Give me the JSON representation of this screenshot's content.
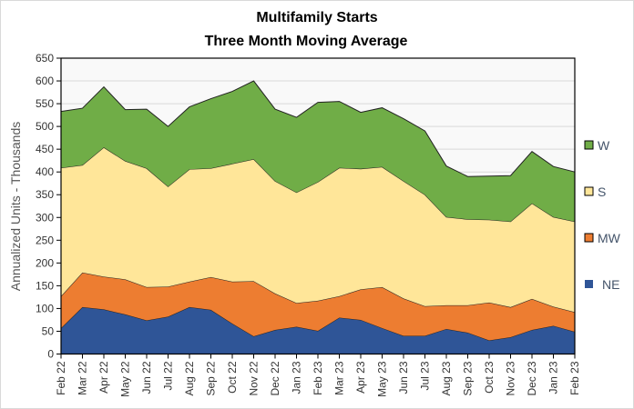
{
  "chart_data": {
    "type": "area",
    "stacked": true,
    "title": "Multifamily  Starts",
    "subtitle": "Three Month Moving Average",
    "xlabel": "",
    "ylabel": "Annualized Units - Thousands",
    "ylim": [
      0,
      650
    ],
    "yticks": [
      0,
      50,
      100,
      150,
      200,
      250,
      300,
      350,
      400,
      450,
      500,
      550,
      600,
      650
    ],
    "grid": true,
    "legend_position": "right",
    "categories": [
      "Feb 22",
      "Mar 22",
      "Apr 22",
      "May 22",
      "Jun 22",
      "Jul 22",
      "Aug 22",
      "Sep 22",
      "Oct 22",
      "Nov 22",
      "Dec 22",
      "Jan 23",
      "Feb 23",
      "Mar 23",
      "Apr 23",
      "May 23",
      "Jun 23",
      "Jul 23",
      "Aug 23",
      "Sep 23",
      "Oct 23",
      "Nov 23",
      "Dec 23",
      "Jan 23",
      "Feb 23"
    ],
    "series": [
      {
        "name": "NE",
        "color": "#2f5597",
        "values": [
          57,
          103,
          98,
          87,
          74,
          82,
          103,
          97,
          67,
          39,
          53,
          60,
          51,
          80,
          75,
          57,
          40,
          40,
          55,
          47,
          30,
          37,
          53,
          62,
          49
        ]
      },
      {
        "name": "MW",
        "color": "#ed7d31",
        "values": [
          70,
          76,
          72,
          77,
          73,
          66,
          56,
          72,
          92,
          121,
          80,
          52,
          66,
          47,
          67,
          90,
          82,
          65,
          52,
          60,
          83,
          66,
          68,
          42,
          43
        ]
      },
      {
        "name": "S",
        "color": "#ffe699",
        "values": [
          282,
          236,
          284,
          260,
          261,
          220,
          247,
          239,
          259,
          268,
          247,
          243,
          261,
          282,
          265,
          264,
          258,
          245,
          194,
          189,
          182,
          188,
          210,
          197,
          199
        ]
      },
      {
        "name": "W",
        "color": "#70ad47",
        "values": [
          124,
          125,
          133,
          113,
          130,
          132,
          137,
          153,
          159,
          172,
          158,
          165,
          175,
          146,
          124,
          130,
          137,
          140,
          112,
          94,
          96,
          101,
          114,
          111,
          109
        ]
      }
    ],
    "legend_order": [
      "W",
      "S",
      "MW",
      "NE"
    ]
  }
}
